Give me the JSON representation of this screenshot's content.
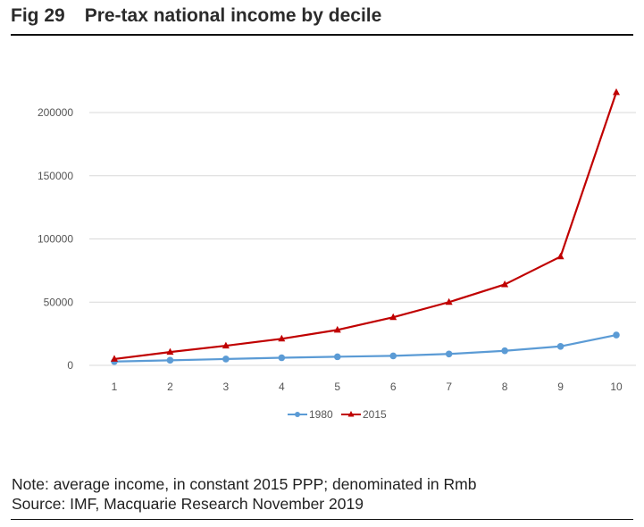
{
  "header": {
    "fig_label": "Fig 29",
    "title": "Pre-tax national income by decile"
  },
  "footer": {
    "note": "Note: average income, in constant 2015 PPP; denominated in Rmb",
    "source": "Source: IMF, Macquarie Research November 2019"
  },
  "chart_data": {
    "type": "line",
    "title": "Pre-tax national income by decile",
    "xlabel": "",
    "ylabel": "",
    "x": [
      1,
      2,
      3,
      4,
      5,
      6,
      7,
      8,
      9,
      10
    ],
    "x_tick_labels": [
      "1",
      "2",
      "3",
      "4",
      "5",
      "6",
      "7",
      "8",
      "9",
      "10"
    ],
    "y_ticks": [
      0,
      50000,
      100000,
      150000,
      200000
    ],
    "y_tick_labels": [
      "0",
      "50000",
      "100000",
      "150000",
      "200000"
    ],
    "ylim": [
      0,
      200000
    ],
    "grid": "horizontal",
    "legend_position": "bottom",
    "series": [
      {
        "name": "1980",
        "color": "#5b9bd5",
        "marker": "circle",
        "values": [
          3000,
          4000,
          5000,
          6000,
          6800,
          7500,
          9000,
          11500,
          15000,
          24000
        ]
      },
      {
        "name": "2015",
        "color": "#c00000",
        "marker": "triangle",
        "values": [
          5000,
          10500,
          15500,
          21000,
          28000,
          38000,
          50000,
          64000,
          86000,
          216000
        ]
      }
    ]
  }
}
